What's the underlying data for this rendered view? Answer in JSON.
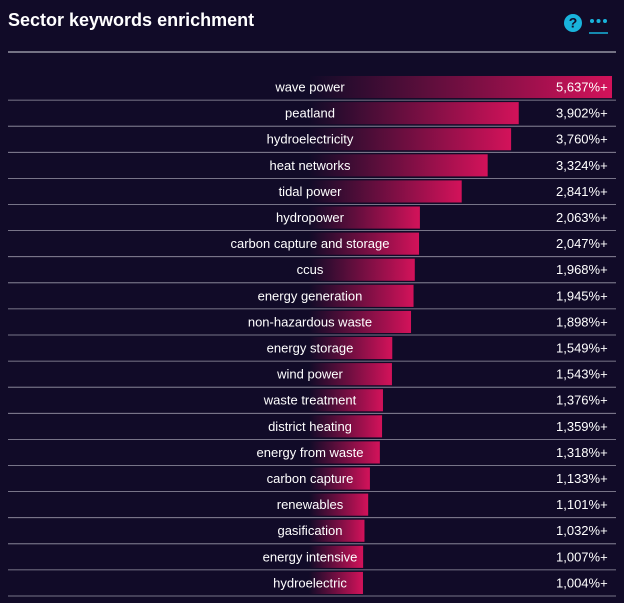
{
  "chart_data": {
    "type": "bar",
    "orientation": "horizontal",
    "title": "Sector keywords enrichment",
    "help_icon": "?",
    "categories": [
      "wave power",
      "peatland",
      "hydroelectricity",
      "heat networks",
      "tidal power",
      "hydropower",
      "carbon capture and storage",
      "ccus",
      "energy generation",
      "non-hazardous waste",
      "energy storage",
      "wind power",
      "waste treatment",
      "district heating",
      "energy from waste",
      "carbon capture",
      "renewables",
      "gasification",
      "energy intensive",
      "hydroelectric"
    ],
    "values": [
      5637,
      3902,
      3760,
      3324,
      2841,
      2063,
      2047,
      1968,
      1945,
      1898,
      1549,
      1543,
      1376,
      1359,
      1318,
      1133,
      1101,
      1032,
      1007,
      1004
    ],
    "value_labels": [
      "5,637%+",
      "3,902%+",
      "3,760%+",
      "3,324%+",
      "2,841%+",
      "2,063%+",
      "2,047%+",
      "1,968%+",
      "1,945%+",
      "1,898%+",
      "1,549%+",
      "1,543%+",
      "1,376%+",
      "1,359%+",
      "1,318%+",
      "1,133%+",
      "1,101%+",
      "1,032%+",
      "1,007%+",
      "1,004%+"
    ],
    "color": "#d3125a"
  }
}
